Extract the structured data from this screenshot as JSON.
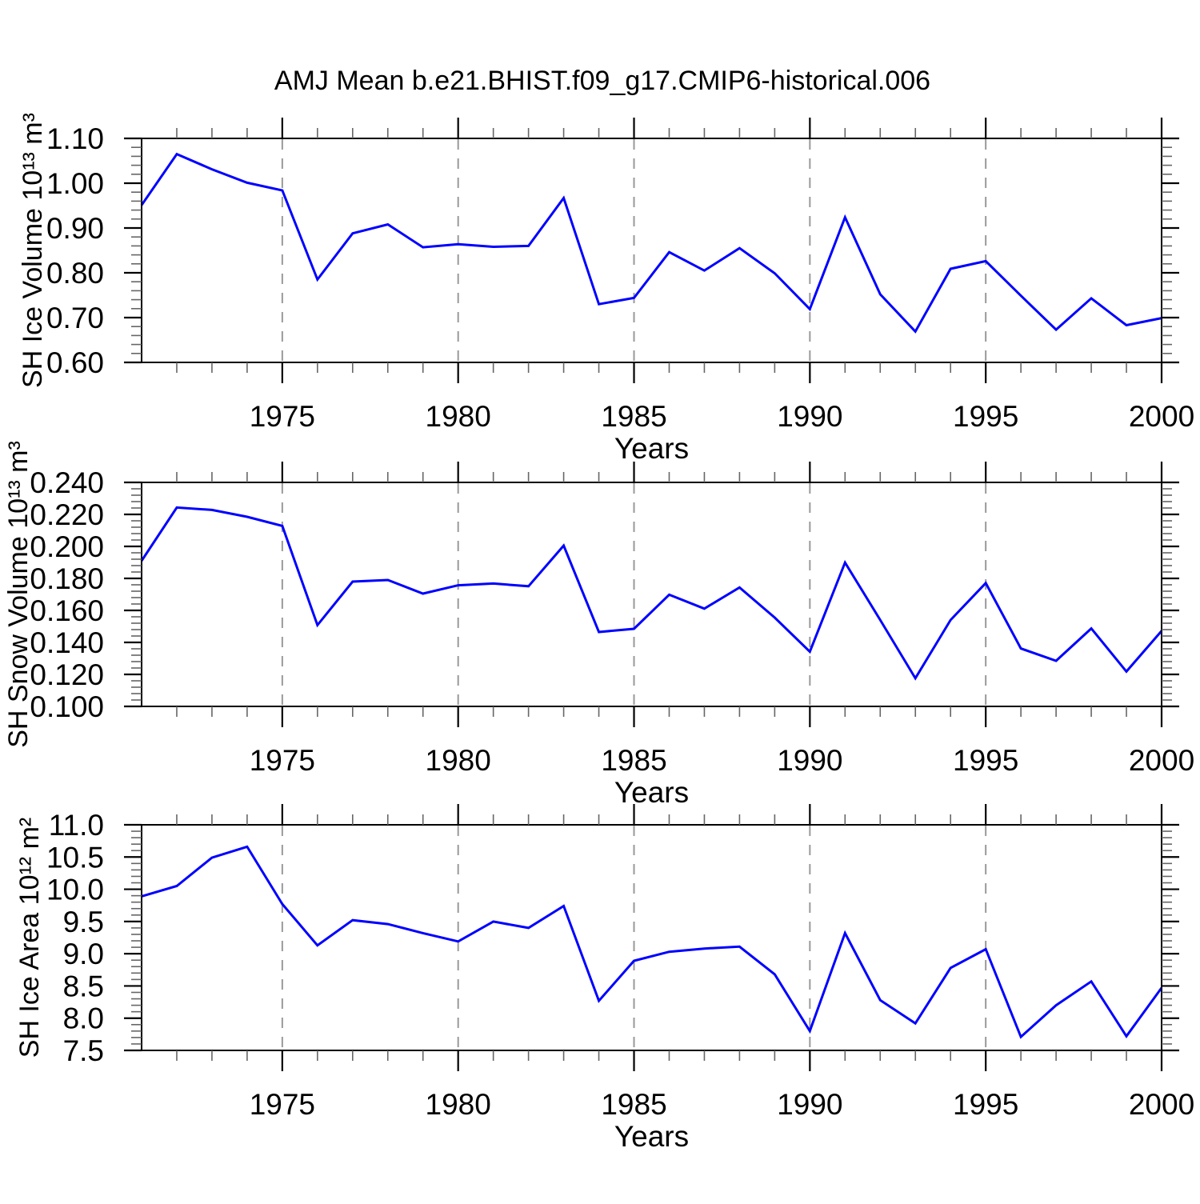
{
  "title": "AMJ Mean b.e21.BHIST.f09_g17.CMIP6-historical.006",
  "line_color": "#0000ff",
  "grid_color": "#999999",
  "axis_color": "#000000",
  "minor_tick_color": "#666666",
  "chart_data": [
    {
      "type": "line",
      "name": "sh-ice-volume",
      "ylabel": "SH Ice Volume 10¹³ m³",
      "xlabel": "Years",
      "xlim": [
        1971,
        2000
      ],
      "x_major_ticks": [
        1975,
        1980,
        1985,
        1990,
        1995,
        2000
      ],
      "x_tick_labels": [
        "1975",
        "1980",
        "1985",
        "1990",
        "1995",
        "2000"
      ],
      "x_minor_step": 1,
      "x_gridlines": [
        1975,
        1980,
        1985,
        1990,
        1995
      ],
      "ylim": [
        0.6,
        1.1
      ],
      "y_major_step": 0.1,
      "y_minor_step": 0.02,
      "y_tick_labels": [
        "0.60",
        "0.70",
        "0.80",
        "0.90",
        "1.00",
        "1.10"
      ],
      "x": [
        1971,
        1972,
        1973,
        1974,
        1975,
        1976,
        1977,
        1978,
        1979,
        1980,
        1981,
        1982,
        1983,
        1984,
        1985,
        1986,
        1987,
        1988,
        1989,
        1990,
        1991,
        1992,
        1993,
        1994,
        1995,
        1996,
        1997,
        1998,
        1999,
        2000
      ],
      "values": [
        0.951,
        1.065,
        1.031,
        1.001,
        0.984,
        0.785,
        0.888,
        0.908,
        0.857,
        0.864,
        0.858,
        0.86,
        0.967,
        0.73,
        0.744,
        0.846,
        0.805,
        0.855,
        0.799,
        0.719,
        0.924,
        0.752,
        0.669,
        0.809,
        0.826,
        0.749,
        0.673,
        0.743,
        0.683,
        0.699
      ]
    },
    {
      "type": "line",
      "name": "sh-snow-volume",
      "ylabel": "SH Snow Volume 10¹³ m³",
      "xlabel": "Years",
      "xlim": [
        1971,
        2000
      ],
      "x_major_ticks": [
        1975,
        1980,
        1985,
        1990,
        1995,
        2000
      ],
      "x_tick_labels": [
        "1975",
        "1980",
        "1985",
        "1990",
        "1995",
        "2000"
      ],
      "x_minor_step": 1,
      "x_gridlines": [
        1975,
        1980,
        1985,
        1990,
        1995
      ],
      "ylim": [
        0.1,
        0.24
      ],
      "y_major_step": 0.02,
      "y_minor_step": 0.004,
      "y_tick_labels": [
        "0.100",
        "0.120",
        "0.140",
        "0.160",
        "0.180",
        "0.200",
        "0.220",
        "0.240"
      ],
      "x": [
        1971,
        1972,
        1973,
        1974,
        1975,
        1976,
        1977,
        1978,
        1979,
        1980,
        1981,
        1982,
        1983,
        1984,
        1985,
        1986,
        1987,
        1988,
        1989,
        1990,
        1991,
        1992,
        1993,
        1994,
        1995,
        1996,
        1997,
        1998,
        1999,
        2000
      ],
      "values": [
        0.191,
        0.2243,
        0.2228,
        0.2185,
        0.2128,
        0.1508,
        0.178,
        0.179,
        0.1705,
        0.1757,
        0.1768,
        0.1751,
        0.2005,
        0.1465,
        0.1485,
        0.1698,
        0.1611,
        0.1743,
        0.1555,
        0.1342,
        0.1899,
        0.154,
        0.1176,
        0.154,
        0.1771,
        0.1362,
        0.1285,
        0.1487,
        0.1218,
        0.1472
      ]
    },
    {
      "type": "line",
      "name": "sh-ice-area",
      "ylabel": "SH Ice Area 10¹² m²",
      "xlabel": "Years",
      "xlim": [
        1971,
        2000
      ],
      "x_major_ticks": [
        1975,
        1980,
        1985,
        1990,
        1995,
        2000
      ],
      "x_tick_labels": [
        "1975",
        "1980",
        "1985",
        "1990",
        "1995",
        "2000"
      ],
      "x_minor_step": 1,
      "x_gridlines": [
        1975,
        1980,
        1985,
        1990,
        1995
      ],
      "ylim": [
        7.5,
        11.0
      ],
      "y_major_step": 0.5,
      "y_minor_step": 0.1,
      "y_tick_labels": [
        "7.5",
        "8.0",
        "8.5",
        "9.0",
        "9.5",
        "10.0",
        "10.5",
        "11.0"
      ],
      "x": [
        1971,
        1972,
        1973,
        1974,
        1975,
        1976,
        1977,
        1978,
        1979,
        1980,
        1981,
        1982,
        1983,
        1984,
        1985,
        1986,
        1987,
        1988,
        1989,
        1990,
        1991,
        1992,
        1993,
        1994,
        1995,
        1996,
        1997,
        1998,
        1999,
        2000
      ],
      "values": [
        9.89,
        10.05,
        10.49,
        10.66,
        9.77,
        9.13,
        9.52,
        9.46,
        9.32,
        9.19,
        9.5,
        9.4,
        9.74,
        8.27,
        8.89,
        9.03,
        9.08,
        9.11,
        8.68,
        7.8,
        9.32,
        8.28,
        7.92,
        8.78,
        9.07,
        7.71,
        8.2,
        8.57,
        7.72,
        8.47
      ]
    }
  ]
}
